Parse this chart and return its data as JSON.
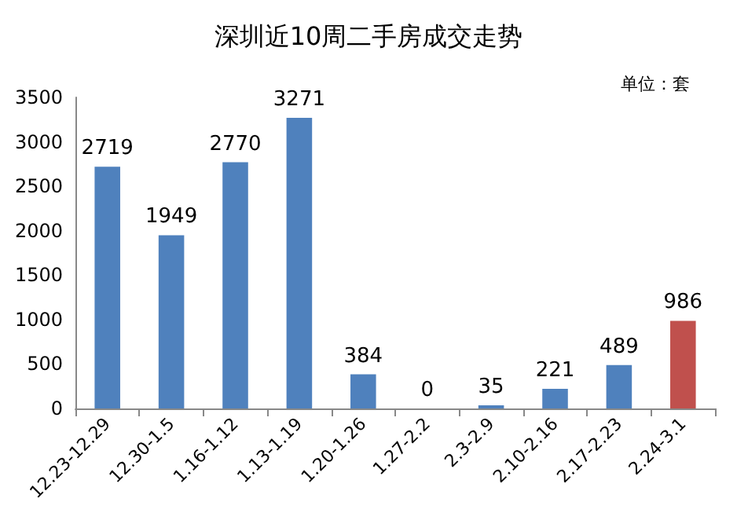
{
  "chart_data": {
    "type": "bar",
    "title": "深圳近10周二手房成交走势",
    "annotations": [
      "单位：套"
    ],
    "categories": [
      "12.23-12.29",
      "12.30-1.5",
      "1.16-1.12",
      "1.13-1.19",
      "1.20-1.26",
      "1.27-2.2",
      "2.3-2.9",
      "2.10-2.16",
      "2.17-2.23",
      "2.24-3.1"
    ],
    "values": [
      2719,
      1949,
      2770,
      3271,
      384,
      0,
      35,
      221,
      489,
      986
    ],
    "colors": [
      "#4f81bd",
      "#4f81bd",
      "#4f81bd",
      "#4f81bd",
      "#4f81bd",
      "#4f81bd",
      "#4f81bd",
      "#4f81bd",
      "#4f81bd",
      "#c0504d"
    ],
    "ylim": [
      0,
      3500
    ],
    "yticks": [
      0,
      500,
      1000,
      1500,
      2000,
      2500,
      3000,
      3500
    ],
    "grid": false,
    "data_labels": true
  }
}
